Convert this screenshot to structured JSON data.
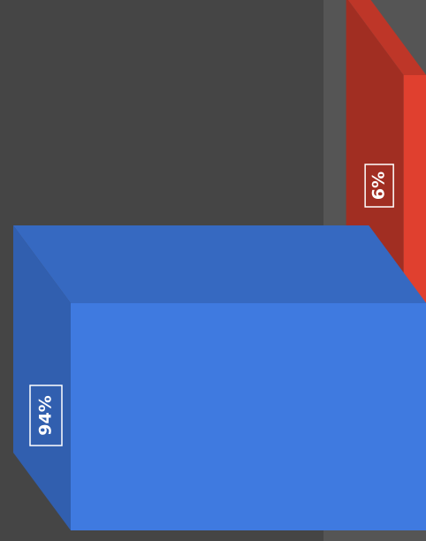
{
  "chart_data": {
    "type": "bar3d",
    "series": [
      {
        "color": "#3f7ae0",
        "values": [
          94
        ],
        "value_labels": [
          "94%"
        ]
      },
      {
        "color": "#e0402f",
        "values": [
          6
        ],
        "value_labels": [
          "6%"
        ]
      }
    ]
  }
}
